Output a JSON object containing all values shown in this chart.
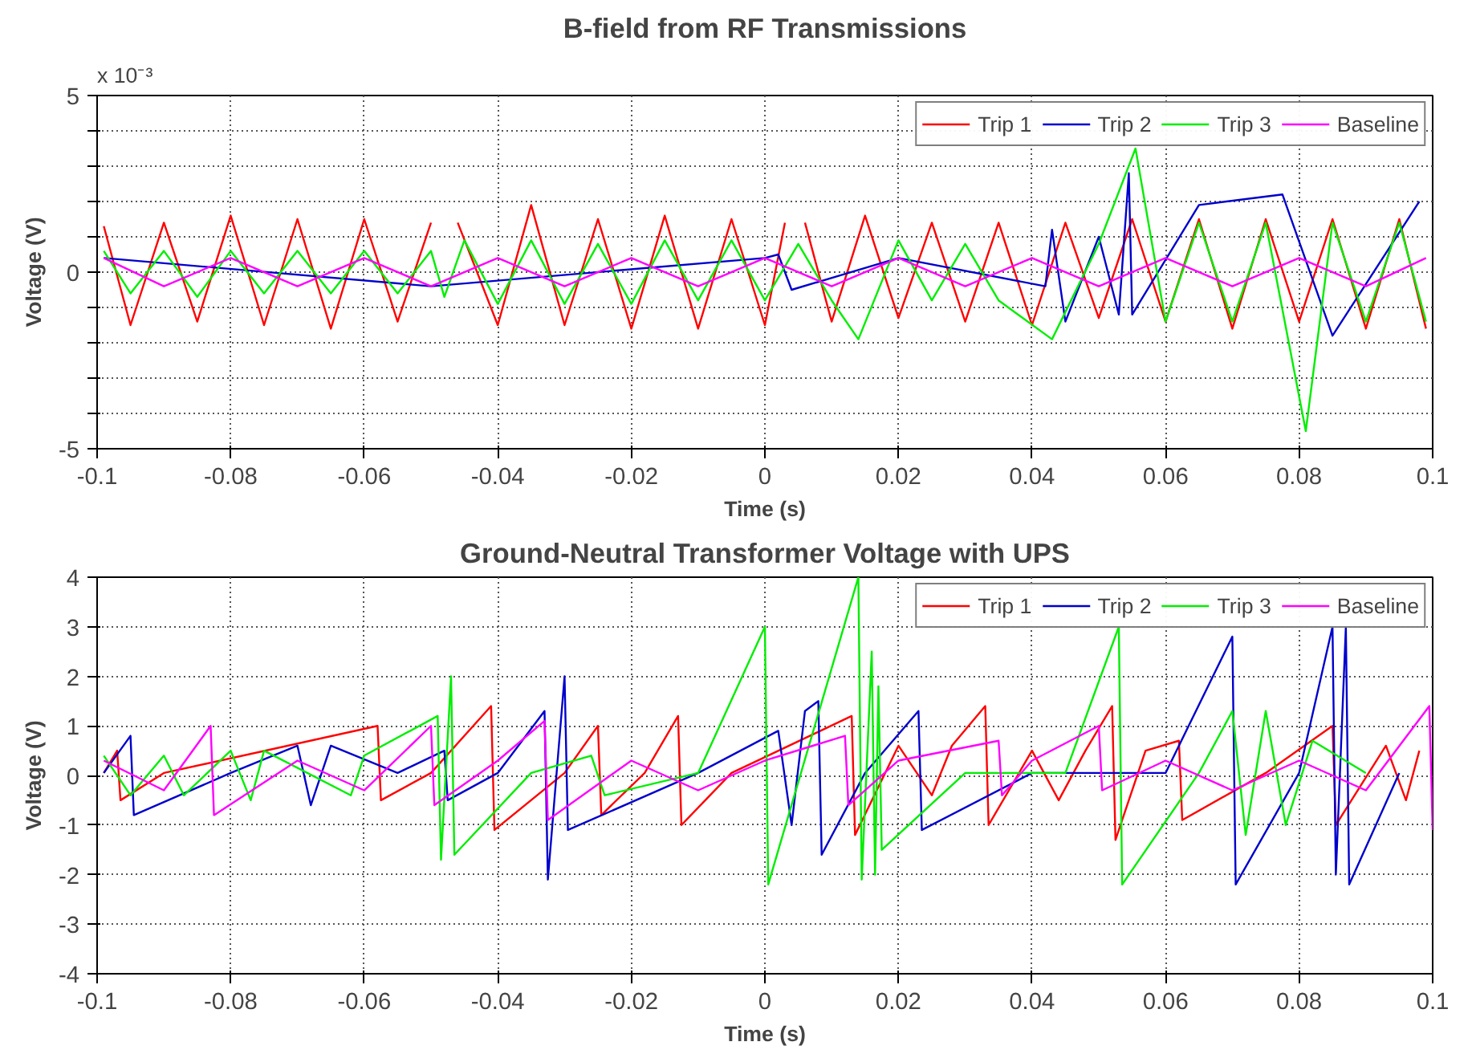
{
  "chart_data": [
    {
      "type": "line",
      "title": "B-field from RF Transmissions",
      "xlabel": "Time (s)",
      "ylabel": "Voltage (V)",
      "annotations": [
        "x 10⁻³"
      ],
      "xlim": [
        -0.1,
        0.1
      ],
      "xticks": [
        -0.1,
        -0.08,
        -0.06,
        -0.04,
        -0.02,
        0,
        0.02,
        0.04,
        0.06,
        0.08,
        0.1
      ],
      "ylim": [
        -5,
        5
      ],
      "yticks": [
        -5,
        {
          "value": -4,
          "label": null
        },
        {
          "value": -3,
          "label": null
        },
        {
          "value": -2,
          "label": null
        },
        {
          "value": -1,
          "label": null
        },
        0,
        {
          "value": 1,
          "label": null
        },
        {
          "value": 2,
          "label": null
        },
        {
          "value": 3,
          "label": null
        },
        {
          "value": 4,
          "label": null
        },
        5
      ],
      "grid": true,
      "legend": "top right",
      "line_style": "solid",
      "series": [
        {
          "name": "Trip 1",
          "color": "#ff0000",
          "x": [
            -0.099,
            -0.095,
            -0.09,
            -0.085,
            -0.08,
            -0.075,
            -0.07,
            -0.065,
            -0.06,
            -0.055,
            -0.05,
            -0.048,
            -0.046,
            -0.04,
            -0.035,
            -0.03,
            -0.025,
            -0.02,
            -0.015,
            -0.01,
            -0.005,
            0,
            0.003,
            0.0045,
            0.006,
            0.01,
            0.015,
            0.02,
            0.025,
            0.03,
            0.035,
            0.04,
            0.045,
            0.05,
            0.055,
            0.06,
            0.065,
            0.07,
            0.075,
            0.08,
            0.085,
            0.09,
            0.095,
            0.099
          ],
          "values": [
            1.3,
            -1.5,
            1.4,
            -1.4,
            1.6,
            -1.5,
            1.5,
            -1.6,
            1.5,
            -1.4,
            1.4,
            null,
            1.4,
            -1.5,
            1.9,
            -1.5,
            1.5,
            -1.6,
            1.6,
            -1.6,
            1.5,
            -1.5,
            1.4,
            null,
            1.4,
            -1.4,
            1.6,
            -1.3,
            1.4,
            -1.4,
            1.4,
            -1.5,
            1.4,
            -1.3,
            1.5,
            -1.4,
            1.5,
            -1.6,
            1.5,
            -1.4,
            1.5,
            -1.6,
            1.5,
            -1.6
          ]
        },
        {
          "name": "Trip 2",
          "color": "#0000cc",
          "x": [
            -0.099,
            -0.05,
            0,
            0.002,
            0.004,
            0.02,
            0.042,
            0.043,
            0.045,
            0.05,
            0.053,
            0.0545,
            0.055,
            0.065,
            0.0775,
            0.085,
            0.098
          ],
          "values": [
            0.4,
            -0.4,
            0.4,
            0.5,
            -0.5,
            0.4,
            -0.4,
            1.2,
            -1.4,
            1.0,
            -1.2,
            2.8,
            -1.2,
            1.9,
            2.2,
            -1.8,
            2.0
          ]
        },
        {
          "name": "Trip 3",
          "color": "#00ee00",
          "x": [
            -0.099,
            -0.095,
            -0.09,
            -0.085,
            -0.08,
            -0.075,
            -0.07,
            -0.065,
            -0.06,
            -0.055,
            -0.05,
            -0.048,
            -0.045,
            -0.04,
            -0.035,
            -0.03,
            -0.025,
            -0.02,
            -0.015,
            -0.01,
            -0.005,
            0,
            0.005,
            0.01,
            0.014,
            0.02,
            0.025,
            0.03,
            0.035,
            0.043,
            0.05,
            0.0555,
            0.06,
            0.065,
            0.07,
            0.075,
            0.081,
            0.085,
            0.09,
            0.095,
            0.099
          ],
          "values": [
            0.6,
            -0.6,
            0.6,
            -0.7,
            0.6,
            -0.6,
            0.6,
            -0.6,
            0.6,
            -0.6,
            0.6,
            -0.7,
            0.9,
            -0.9,
            0.9,
            -0.9,
            0.8,
            -0.9,
            0.9,
            -0.8,
            0.9,
            -0.8,
            0.8,
            -0.8,
            -1.9,
            0.9,
            -0.8,
            0.8,
            -0.8,
            -1.9,
            0.8,
            3.5,
            -1.4,
            1.4,
            -1.4,
            1.4,
            -4.5,
            1.4,
            -1.4,
            1.4,
            -1.4
          ]
        },
        {
          "name": "Baseline",
          "color": "#ff00ff",
          "x": [
            -0.099,
            -0.09,
            -0.08,
            -0.07,
            -0.06,
            -0.05,
            -0.04,
            -0.03,
            -0.02,
            -0.01,
            0,
            0.01,
            0.02,
            0.03,
            0.04,
            0.05,
            0.06,
            0.07,
            0.08,
            0.09,
            0.099
          ],
          "values": [
            0.4,
            -0.4,
            0.4,
            -0.4,
            0.4,
            -0.4,
            0.4,
            -0.4,
            0.4,
            -0.4,
            0.4,
            -0.4,
            0.4,
            -0.4,
            0.4,
            -0.4,
            0.4,
            -0.4,
            0.4,
            -0.4,
            0.4
          ]
        }
      ]
    },
    {
      "type": "line",
      "title": "Ground-Neutral Transformer Voltage with UPS",
      "xlabel": "Time (s)",
      "ylabel": "Voltage (V)",
      "xlim": [
        -0.1,
        0.1
      ],
      "xticks": [
        -0.1,
        -0.08,
        -0.06,
        -0.04,
        -0.02,
        0,
        0.02,
        0.04,
        0.06,
        0.08,
        0.1
      ],
      "ylim": [
        -4,
        4
      ],
      "yticks": [
        -4,
        -3,
        -2,
        -1,
        0,
        1,
        2,
        3,
        4
      ],
      "grid": true,
      "legend": "top right",
      "line_style": "solid",
      "series": [
        {
          "name": "Trip 1",
          "color": "#ff0000",
          "x": [
            -0.099,
            -0.097,
            -0.0965,
            -0.09,
            -0.058,
            -0.0575,
            -0.05,
            -0.041,
            -0.0405,
            -0.03,
            -0.025,
            -0.0245,
            -0.018,
            -0.013,
            -0.0125,
            -0.005,
            0.013,
            0.0135,
            0.02,
            0.025,
            0.028,
            0.033,
            0.0335,
            0.04,
            0.044,
            0.048,
            0.052,
            0.0525,
            0.057,
            0.062,
            0.0625,
            0.075,
            0.085,
            0.0855,
            0.093,
            0.096,
            0.098
          ],
          "values": [
            0.05,
            0.5,
            -0.5,
            0.05,
            1.0,
            -0.5,
            0.05,
            1.4,
            -1.1,
            0.05,
            1.0,
            -0.8,
            0.05,
            1.2,
            -1.0,
            0.05,
            1.2,
            -1.2,
            0.6,
            -0.4,
            0.6,
            1.4,
            -1.0,
            0.5,
            -0.5,
            0.5,
            1.4,
            -1.3,
            0.5,
            0.7,
            -0.9,
            0.05,
            1.0,
            -1.0,
            0.6,
            -0.5,
            0.5
          ]
        },
        {
          "name": "Trip 2",
          "color": "#0000cc",
          "x": [
            -0.099,
            -0.095,
            -0.0945,
            -0.08,
            -0.07,
            -0.068,
            -0.065,
            -0.055,
            -0.048,
            -0.0475,
            -0.04,
            -0.033,
            -0.0325,
            -0.03,
            -0.0295,
            -0.01,
            0.002,
            0.004,
            0.006,
            0.008,
            0.0085,
            0.015,
            0.023,
            0.0235,
            0.04,
            0.06,
            0.07,
            0.0705,
            0.08,
            0.085,
            0.0855,
            0.087,
            0.0875,
            0.095
          ],
          "values": [
            0.05,
            0.8,
            -0.8,
            0.05,
            0.6,
            -0.6,
            0.6,
            0.05,
            0.5,
            -0.5,
            0.05,
            1.3,
            -2.1,
            2.0,
            -1.1,
            0.05,
            0.9,
            -1.0,
            1.3,
            1.5,
            -1.6,
            0.05,
            1.3,
            -1.1,
            0.05,
            0.05,
            2.8,
            -2.2,
            0.05,
            3.0,
            -2.0,
            3.0,
            -2.2,
            0.05
          ]
        },
        {
          "name": "Trip 3",
          "color": "#00ee00",
          "x": [
            -0.099,
            -0.095,
            -0.09,
            -0.087,
            -0.08,
            -0.077,
            -0.075,
            -0.062,
            -0.06,
            -0.049,
            -0.0485,
            -0.047,
            -0.0465,
            -0.035,
            -0.026,
            -0.024,
            -0.01,
            0,
            0.0005,
            0.014,
            0.0145,
            0.016,
            0.0165,
            0.017,
            0.0175,
            0.03,
            0.045,
            0.053,
            0.0535,
            0.065,
            0.07,
            0.072,
            0.075,
            0.078,
            0.082,
            0.09
          ],
          "values": [
            0.4,
            -0.4,
            0.4,
            -0.4,
            0.5,
            -0.5,
            0.5,
            -0.4,
            0.4,
            1.2,
            -1.7,
            2.0,
            -1.6,
            0.05,
            0.4,
            -0.4,
            0.05,
            3.0,
            -2.2,
            4.0,
            -2.1,
            2.5,
            -2.0,
            1.8,
            -1.5,
            0.05,
            0.05,
            3.0,
            -2.2,
            0.05,
            1.3,
            -1.2,
            1.3,
            -1.0,
            0.7,
            0.05
          ]
        },
        {
          "name": "Baseline",
          "color": "#ff00ff",
          "x": [
            -0.099,
            -0.09,
            -0.083,
            -0.0825,
            -0.07,
            -0.06,
            -0.05,
            -0.0495,
            -0.04,
            -0.033,
            -0.0325,
            -0.02,
            -0.01,
            0,
            0.012,
            0.0125,
            0.02,
            0.035,
            0.0355,
            0.04,
            0.05,
            0.0505,
            0.06,
            0.07,
            0.08,
            0.09,
            0.0995,
            0.1
          ],
          "values": [
            0.3,
            -0.3,
            1.0,
            -0.8,
            0.3,
            -0.3,
            1.0,
            -0.6,
            0.3,
            1.1,
            -0.9,
            0.3,
            -0.3,
            0.3,
            0.8,
            -0.6,
            0.3,
            0.7,
            -0.4,
            0.3,
            1.0,
            -0.3,
            0.3,
            -0.3,
            0.3,
            -0.3,
            1.4,
            -1.1
          ]
        }
      ]
    }
  ]
}
